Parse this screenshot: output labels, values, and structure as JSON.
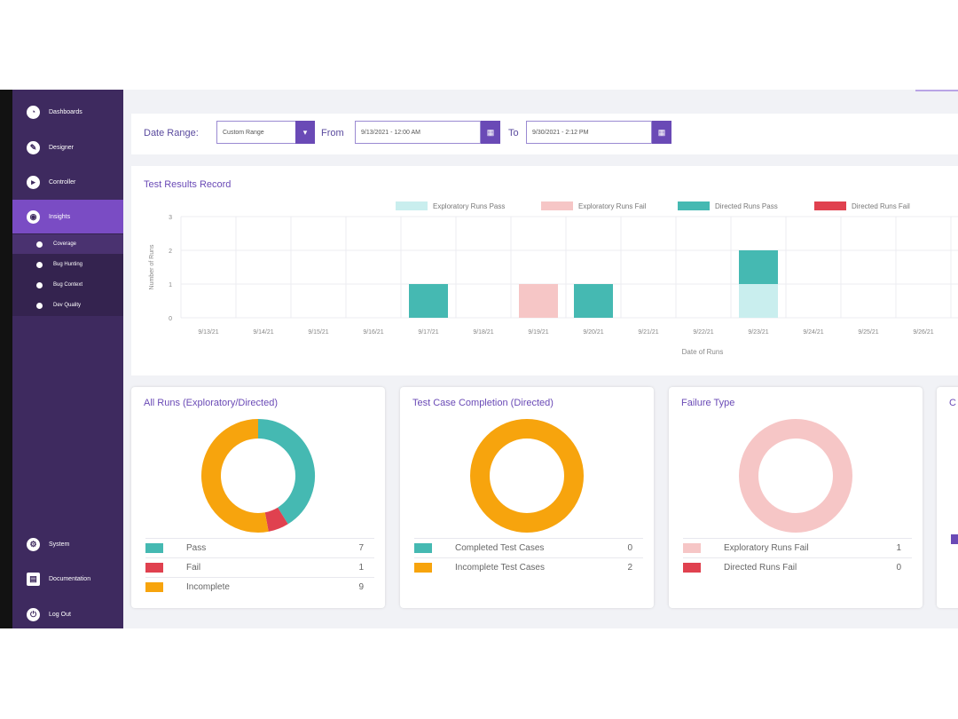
{
  "sidebar": {
    "items": [
      {
        "label": "Dashboards",
        "icon": "dashboard-icon",
        "glyph": "◔"
      },
      {
        "label": "Designer",
        "icon": "designer-icon",
        "glyph": "✎"
      },
      {
        "label": "Controller",
        "icon": "controller-icon",
        "glyph": "▸"
      },
      {
        "label": "Insights",
        "icon": "insights-icon",
        "glyph": "◉"
      }
    ],
    "sub_items": [
      {
        "label": "Coverage",
        "icon": "coverage-icon",
        "glyph": "●"
      },
      {
        "label": "Bug Hunting",
        "icon": "home-icon",
        "glyph": "⌂"
      },
      {
        "label": "Bug Context",
        "icon": "bug-icon",
        "glyph": "●"
      },
      {
        "label": "Dev Quality",
        "icon": "quality-icon",
        "glyph": "P"
      }
    ],
    "bottom_items": [
      {
        "label": "System",
        "icon": "system-icon",
        "glyph": "⚙"
      },
      {
        "label": "Documentation",
        "icon": "document-icon",
        "glyph": "▤"
      },
      {
        "label": "Log Out",
        "icon": "logout-icon",
        "glyph": "⏻"
      }
    ]
  },
  "filters": {
    "date_range_label": "Date Range:",
    "date_range_value": "Custom Range",
    "from_label": "From",
    "from_value": "9/13/2021 - 12:00 AM",
    "to_label": "To",
    "to_value": "9/30/2021 - 2:12 PM"
  },
  "chart_data": {
    "type": "bar",
    "title": "Test Results Record",
    "xlabel": "Date of Runs",
    "ylabel": "Number of Runs",
    "ylim": [
      0,
      3
    ],
    "yticks": [
      0,
      1,
      2,
      3
    ],
    "stacked": true,
    "legend_position": "top-right",
    "categories": [
      "9/13/21",
      "9/14/21",
      "9/15/21",
      "9/16/21",
      "9/17/21",
      "9/18/21",
      "9/19/21",
      "9/20/21",
      "9/21/21",
      "9/22/21",
      "9/23/21",
      "9/24/21",
      "9/25/21",
      "9/26/21"
    ],
    "series": [
      {
        "name": "Exploratory Runs Pass",
        "color": "#c9eeee",
        "values": [
          0,
          0,
          0,
          0,
          0,
          0,
          0,
          0,
          0,
          0,
          1,
          0,
          0,
          0
        ]
      },
      {
        "name": "Exploratory Runs Fail",
        "color": "#f6c6c6",
        "values": [
          0,
          0,
          0,
          0,
          0,
          0,
          1,
          0,
          0,
          0,
          0,
          0,
          0,
          0
        ]
      },
      {
        "name": "Directed Runs Pass",
        "color": "#45b9b2",
        "values": [
          0,
          0,
          0,
          0,
          1,
          0,
          0,
          1,
          0,
          0,
          1,
          0,
          0,
          0
        ]
      },
      {
        "name": "Directed Runs Fail",
        "color": "#e0414f",
        "values": [
          0,
          0,
          0,
          0,
          0,
          0,
          0,
          0,
          0,
          0,
          0,
          0,
          0,
          0
        ]
      }
    ]
  },
  "donuts": [
    {
      "title": "All Runs (Exploratory/Directed)",
      "items": [
        {
          "label": "Pass",
          "value": 7,
          "color": "#45b9b2"
        },
        {
          "label": "Fail",
          "value": 1,
          "color": "#e0414f"
        },
        {
          "label": "Incomplete",
          "value": 9,
          "color": "#f7a40d"
        }
      ]
    },
    {
      "title": "Test Case Completion (Directed)",
      "items": [
        {
          "label": "Completed Test Cases",
          "value": 0,
          "color": "#45b9b2"
        },
        {
          "label": "Incomplete Test Cases",
          "value": 2,
          "color": "#f7a40d"
        }
      ]
    },
    {
      "title": "Failure Type",
      "items": [
        {
          "label": "Exploratory Runs Fail",
          "value": 1,
          "color": "#f6c6c6"
        },
        {
          "label": "Directed Runs Fail",
          "value": 0,
          "color": "#e0414f"
        }
      ]
    }
  ],
  "partial_card": {
    "title": "C"
  }
}
